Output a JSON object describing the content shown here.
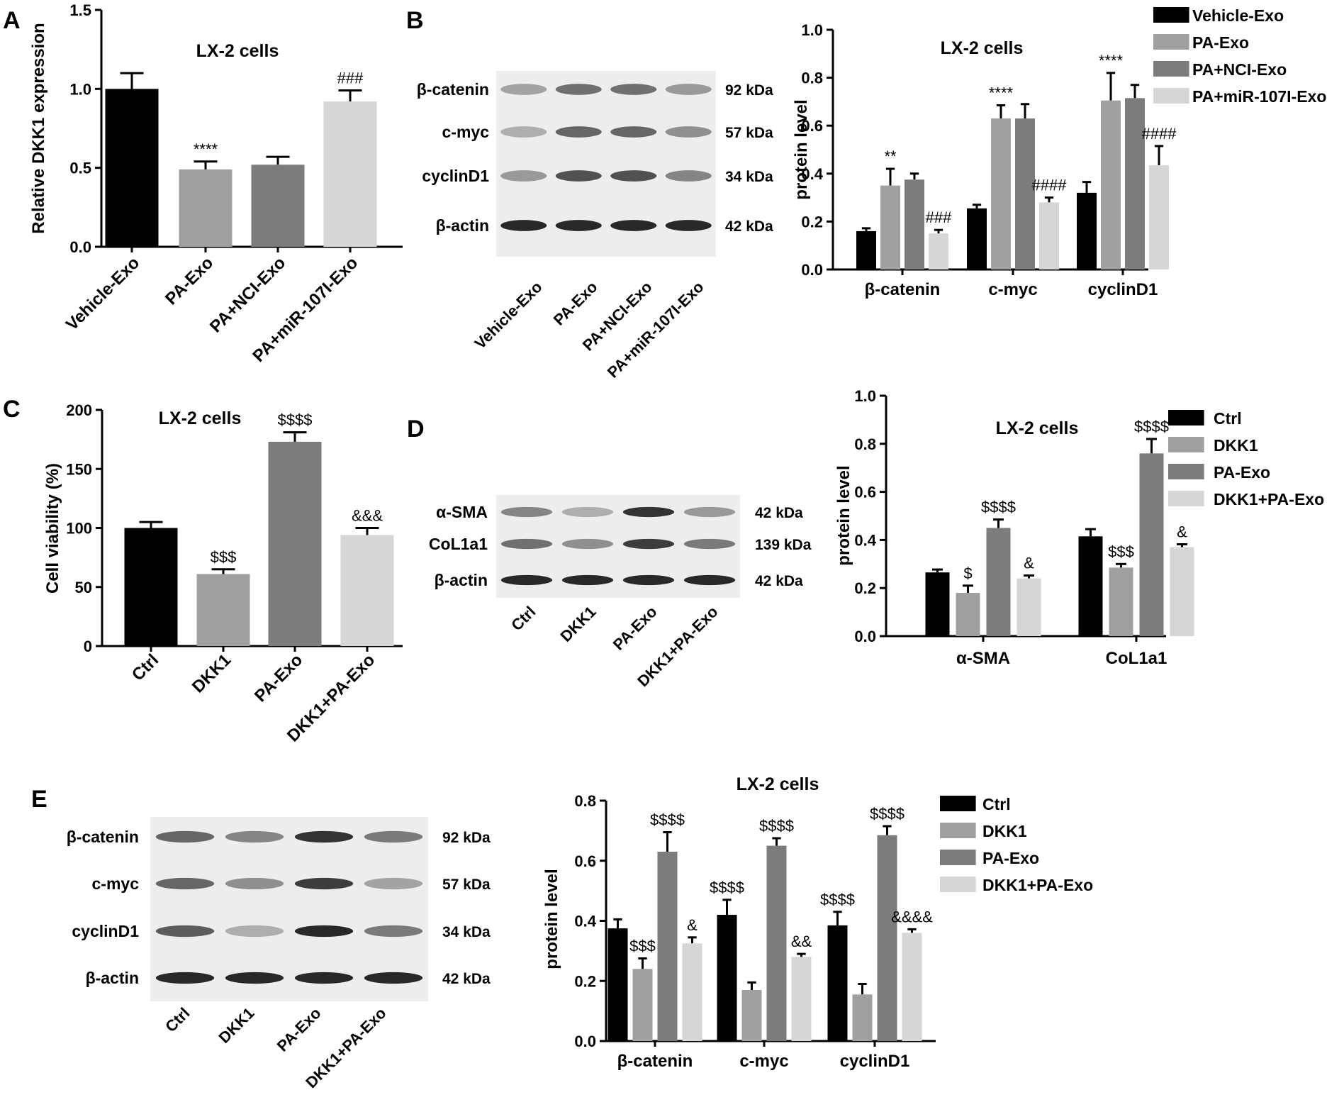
{
  "colors": {
    "series": [
      "#000000",
      "#a0a0a0",
      "#7c7c7c",
      "#d6d6d6"
    ],
    "axis": "#000000",
    "blot_bg": "#e9e9e9",
    "band": "#2a2a2a"
  },
  "panel_labels": [
    "A",
    "B",
    "C",
    "D",
    "E"
  ],
  "blots": [
    {
      "panel": "B",
      "rows": [
        {
          "label": "β-catenin",
          "kda": "92 kDa",
          "intensity": [
            0.35,
            0.6,
            0.6,
            0.4
          ]
        },
        {
          "label": "c-myc",
          "kda": "57 kDa",
          "intensity": [
            0.3,
            0.65,
            0.65,
            0.45
          ]
        },
        {
          "label": "cyclinD1",
          "kda": "34 kDa",
          "intensity": [
            0.4,
            0.75,
            0.75,
            0.5
          ]
        },
        {
          "label": "β-actin",
          "kda": "42 kDa",
          "intensity": [
            0.95,
            0.95,
            0.95,
            0.95
          ]
        }
      ],
      "lanes": [
        "Vehicle-Exo",
        "PA-Exo",
        "PA+NCI-Exo",
        "PA+miR-107I-Exo"
      ]
    },
    {
      "panel": "D",
      "rows": [
        {
          "label": "α-SMA",
          "kda": "42 kDa",
          "intensity": [
            0.5,
            0.3,
            0.9,
            0.4
          ]
        },
        {
          "label": "CoL1a1",
          "kda": "139 kDa",
          "intensity": [
            0.6,
            0.45,
            0.85,
            0.55
          ]
        },
        {
          "label": "β-actin",
          "kda": "42 kDa",
          "intensity": [
            0.95,
            0.95,
            0.95,
            0.95
          ]
        }
      ],
      "lanes": [
        "Ctrl",
        "DKK1",
        "PA-Exo",
        "DKK1+PA-Exo"
      ]
    },
    {
      "panel": "E",
      "rows": [
        {
          "label": "β-catenin",
          "kda": "92 kDa",
          "intensity": [
            0.65,
            0.5,
            0.9,
            0.55
          ]
        },
        {
          "label": "c-myc",
          "kda": "57 kDa",
          "intensity": [
            0.65,
            0.45,
            0.85,
            0.35
          ]
        },
        {
          "label": "cyclinD1",
          "kda": "34 kDa",
          "intensity": [
            0.7,
            0.3,
            0.95,
            0.55
          ]
        },
        {
          "label": "β-actin",
          "kda": "42 kDa",
          "intensity": [
            0.95,
            0.95,
            0.95,
            0.95
          ]
        }
      ],
      "lanes": [
        "Ctrl",
        "DKK1",
        "PA-Exo",
        "DKK1+PA-Exo"
      ]
    }
  ],
  "chart_data": [
    {
      "panel": "A",
      "type": "bar",
      "title": "LX-2 cells",
      "xlabel": "",
      "ylabel": "Relative DKK1 expression",
      "ylim": [
        0,
        1.5
      ],
      "yticks": [
        "0.0",
        "0.5",
        "1.0",
        "1.5"
      ],
      "categories": [
        "Vehicle-Exo",
        "PA-Exo",
        "PA+NCI-Exo",
        "PA+miR-107I-Exo"
      ],
      "values": [
        1.0,
        0.49,
        0.52,
        0.92
      ],
      "errors": [
        0.1,
        0.05,
        0.05,
        0.07
      ],
      "annotations": [
        "",
        "****",
        "",
        "###"
      ]
    },
    {
      "panel": "B",
      "type": "bar",
      "title": "LX-2 cells",
      "xlabel": "",
      "ylabel": "protein level",
      "ylim": [
        0,
        1.0
      ],
      "yticks": [
        "0.0",
        "0.2",
        "0.4",
        "0.6",
        "0.8",
        "1.0"
      ],
      "categories": [
        "β-catenin",
        "c-myc",
        "cyclinD1"
      ],
      "legend": "top-right",
      "series": [
        {
          "name": "Vehicle-Exo",
          "values": [
            0.16,
            0.255,
            0.32
          ],
          "errors": [
            0.012,
            0.015,
            0.045
          ],
          "annotations": [
            "",
            "",
            ""
          ]
        },
        {
          "name": "PA-Exo",
          "values": [
            0.35,
            0.63,
            0.705
          ],
          "errors": [
            0.07,
            0.055,
            0.115
          ],
          "annotations": [
            "**",
            "****",
            "****"
          ]
        },
        {
          "name": "PA+NCI-Exo",
          "values": [
            0.375,
            0.63,
            0.715
          ],
          "errors": [
            0.025,
            0.06,
            0.055
          ],
          "annotations": [
            "",
            "",
            ""
          ]
        },
        {
          "name": "PA+miR-107I-Exo",
          "values": [
            0.15,
            0.28,
            0.435
          ],
          "errors": [
            0.015,
            0.02,
            0.08
          ],
          "annotations": [
            "###",
            "####",
            "####"
          ]
        }
      ]
    },
    {
      "panel": "C",
      "type": "bar",
      "title": "LX-2 cells",
      "xlabel": "",
      "ylabel": "Cell viability (%)",
      "ylim": [
        0,
        200
      ],
      "yticks": [
        "0",
        "50",
        "100",
        "150",
        "200"
      ],
      "categories": [
        "Ctrl",
        "DKK1",
        "PA-Exo",
        "DKK1+PA-Exo"
      ],
      "values": [
        100,
        61,
        173,
        94
      ],
      "errors": [
        5,
        4,
        8,
        6
      ],
      "annotations": [
        "",
        "$$$",
        "$$$$",
        "&&&"
      ]
    },
    {
      "panel": "D",
      "type": "bar",
      "title": "LX-2 cells",
      "xlabel": "",
      "ylabel": "protein level",
      "ylim": [
        0,
        1.0
      ],
      "yticks": [
        "0.0",
        "0.2",
        "0.4",
        "0.6",
        "0.8",
        "1.0"
      ],
      "categories": [
        "α-SMA",
        "CoL1a1"
      ],
      "legend": "top-right",
      "series": [
        {
          "name": "Ctrl",
          "values": [
            0.265,
            0.415
          ],
          "errors": [
            0.012,
            0.03
          ],
          "annotations": [
            "",
            ""
          ]
        },
        {
          "name": "DKK1",
          "values": [
            0.18,
            0.285
          ],
          "errors": [
            0.03,
            0.015
          ],
          "annotations": [
            "$",
            "$$$"
          ]
        },
        {
          "name": "PA-Exo",
          "values": [
            0.45,
            0.76
          ],
          "errors": [
            0.035,
            0.06
          ],
          "annotations": [
            "$$$$",
            "$$$$"
          ]
        },
        {
          "name": "DKK1+PA-Exo",
          "values": [
            0.24,
            0.37
          ],
          "errors": [
            0.012,
            0.012
          ],
          "annotations": [
            "&",
            "&"
          ]
        }
      ]
    },
    {
      "panel": "E",
      "type": "bar",
      "title": "LX-2 cells",
      "xlabel": "",
      "ylabel": "protein level",
      "ylim": [
        0,
        0.8
      ],
      "yticks": [
        "0.0",
        "0.2",
        "0.4",
        "0.6",
        "0.8"
      ],
      "categories": [
        "β-catenin",
        "c-myc",
        "cyclinD1"
      ],
      "legend": "top-right",
      "series": [
        {
          "name": "Ctrl",
          "values": [
            0.375,
            0.42,
            0.385
          ],
          "errors": [
            0.03,
            0.05,
            0.045
          ],
          "annotations": [
            "",
            "$$$$",
            "$$$$"
          ]
        },
        {
          "name": "DKK1",
          "values": [
            0.24,
            0.17,
            0.155
          ],
          "errors": [
            0.035,
            0.025,
            0.035
          ],
          "annotations": [
            "$$$",
            "",
            ""
          ]
        },
        {
          "name": "PA-Exo",
          "values": [
            0.63,
            0.65,
            0.685
          ],
          "errors": [
            0.065,
            0.025,
            0.03
          ],
          "annotations": [
            "$$$$",
            "$$$$",
            "$$$$"
          ]
        },
        {
          "name": "DKK1+PA-Exo",
          "values": [
            0.325,
            0.28,
            0.36
          ],
          "errors": [
            0.02,
            0.01,
            0.012
          ],
          "annotations": [
            "&",
            "&&",
            "&&&&"
          ]
        }
      ]
    }
  ]
}
